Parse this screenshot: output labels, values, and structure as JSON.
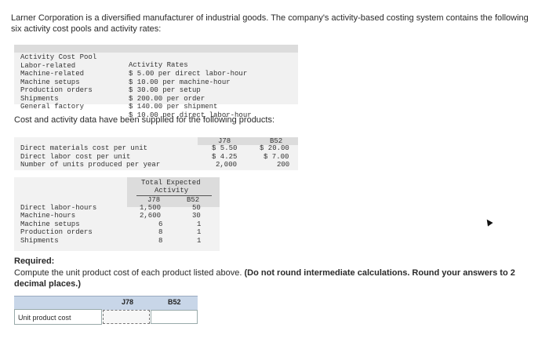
{
  "intro": "Larner Corporation is a diversified manufacturer of industrial goods. The company's activity-based costing system contains the following six activity cost pools and activity rates:",
  "activity_table": {
    "headers": [
      "Activity Cost Pool",
      "Activity Rates"
    ],
    "rows": [
      {
        "pool": "Labor-related",
        "rate": "$ 5.00 per direct labor-hour"
      },
      {
        "pool": "Machine-related",
        "rate": "$ 10.00 per machine-hour"
      },
      {
        "pool": "Machine setups",
        "rate": "$ 30.00 per setup"
      },
      {
        "pool": "Production orders",
        "rate": "$ 200.00 per order"
      },
      {
        "pool": "Shipments",
        "rate": "$ 140.00 per shipment"
      },
      {
        "pool": "General factory",
        "rate": "$ 10.00 per direct labor-hour"
      }
    ]
  },
  "cost_heading": "Cost and activity data have been supplied for the following products:",
  "product_table": {
    "headers": [
      "J78",
      "B52"
    ],
    "rows": [
      {
        "label": "Direct materials cost per unit",
        "j78": "$ 5.50",
        "b52": "$ 20.00"
      },
      {
        "label": "Direct labor cost per unit",
        "j78": "$ 4.25",
        "b52": "$ 7.00"
      },
      {
        "label": "Number of units produced per year",
        "j78": "2,000",
        "b52": "200"
      }
    ]
  },
  "expected_table": {
    "title_line1": "Total Expected",
    "title_line2": "Activity",
    "headers": [
      "J78",
      "B52"
    ],
    "rows": [
      {
        "label": "Direct labor-hours",
        "j78": "1,500",
        "b52": "50"
      },
      {
        "label": "Machine-hours",
        "j78": "2,600",
        "b52": "30"
      },
      {
        "label": "Machine setups",
        "j78": "6",
        "b52": "1"
      },
      {
        "label": "Production orders",
        "j78": "8",
        "b52": "1"
      },
      {
        "label": "Shipments",
        "j78": "8",
        "b52": "1"
      }
    ]
  },
  "required": {
    "label": "Required:",
    "text": "Compute the unit product cost of each product listed above.",
    "note": "(Do not round intermediate calculations. Round your answers to 2 decimal places.)"
  },
  "answer_grid": {
    "headers": [
      "J78",
      "B52"
    ],
    "row_label": "Unit product cost",
    "j78_value": "",
    "b52_value": ""
  }
}
